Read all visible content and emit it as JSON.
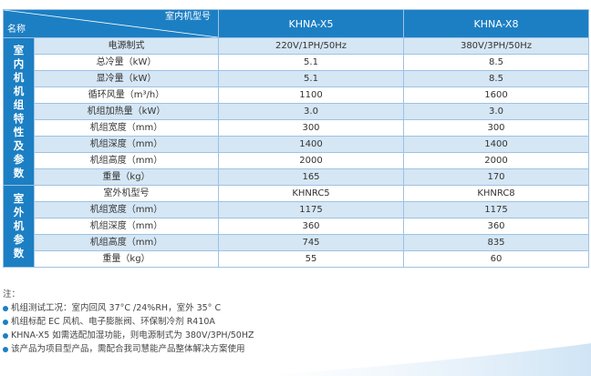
{
  "header": {
    "indoor_model_label": "室内机型号",
    "name_label": "名称",
    "models": [
      "KHNA-X5",
      "KHNA-X8"
    ]
  },
  "groups": [
    {
      "title": [
        "室",
        "内",
        "机",
        "机",
        "组",
        "特",
        "性",
        "及",
        "参",
        "数"
      ],
      "rows": [
        {
          "label": "电源制式",
          "x5": "220V/1PH/50Hz",
          "x8": "380V/3PH/50Hz"
        },
        {
          "label": "总冷量（kW）",
          "x5": "5.1",
          "x8": "8.5"
        },
        {
          "label": "显冷量（kW）",
          "x5": "5.1",
          "x8": "8.5"
        },
        {
          "label": "循环风量（m³/h）",
          "x5": "1100",
          "x8": "1600"
        },
        {
          "label": "机组加热量（kW）",
          "x5": "3.0",
          "x8": "3.0"
        },
        {
          "label": "机组宽度（mm）",
          "x5": "300",
          "x8": "300"
        },
        {
          "label": "机组深度（mm）",
          "x5": "1400",
          "x8": "1400"
        },
        {
          "label": "机组高度（mm）",
          "x5": "2000",
          "x8": "2000"
        },
        {
          "label": "重量（kg）",
          "x5": "165",
          "x8": "170"
        }
      ]
    },
    {
      "title": [
        "室",
        "外",
        "机",
        "参",
        "数"
      ],
      "rows": [
        {
          "label": "室外机型号",
          "x5": "KHNRC5",
          "x8": "KHNRC8"
        },
        {
          "label": "机组宽度（mm）",
          "x5": "1175",
          "x8": "1175"
        },
        {
          "label": "机组深度（mm）",
          "x5": "360",
          "x8": "360"
        },
        {
          "label": "机组高度（mm）",
          "x5": "745",
          "x8": "835"
        },
        {
          "label": "重量（kg）",
          "x5": "55",
          "x8": "60"
        }
      ]
    }
  ],
  "notes": {
    "heading": "注：",
    "items": [
      "机组测试工况：室内回风 37°C /24%RH，室外 35° C",
      "机组标配 EC 风机、电子膨胀阀、环保制冷剂 R410A",
      "KHNA-X5 如需选配加湿功能，则电源制式为 380V/3PH/50HZ",
      "该产品为项目型产品，需配合我司慧能产品整体解决方案使用"
    ]
  },
  "colors": {
    "header_blue": "#1c7fc3",
    "stripe_light": "#d5e6f4",
    "border": "#9ec2e2"
  }
}
